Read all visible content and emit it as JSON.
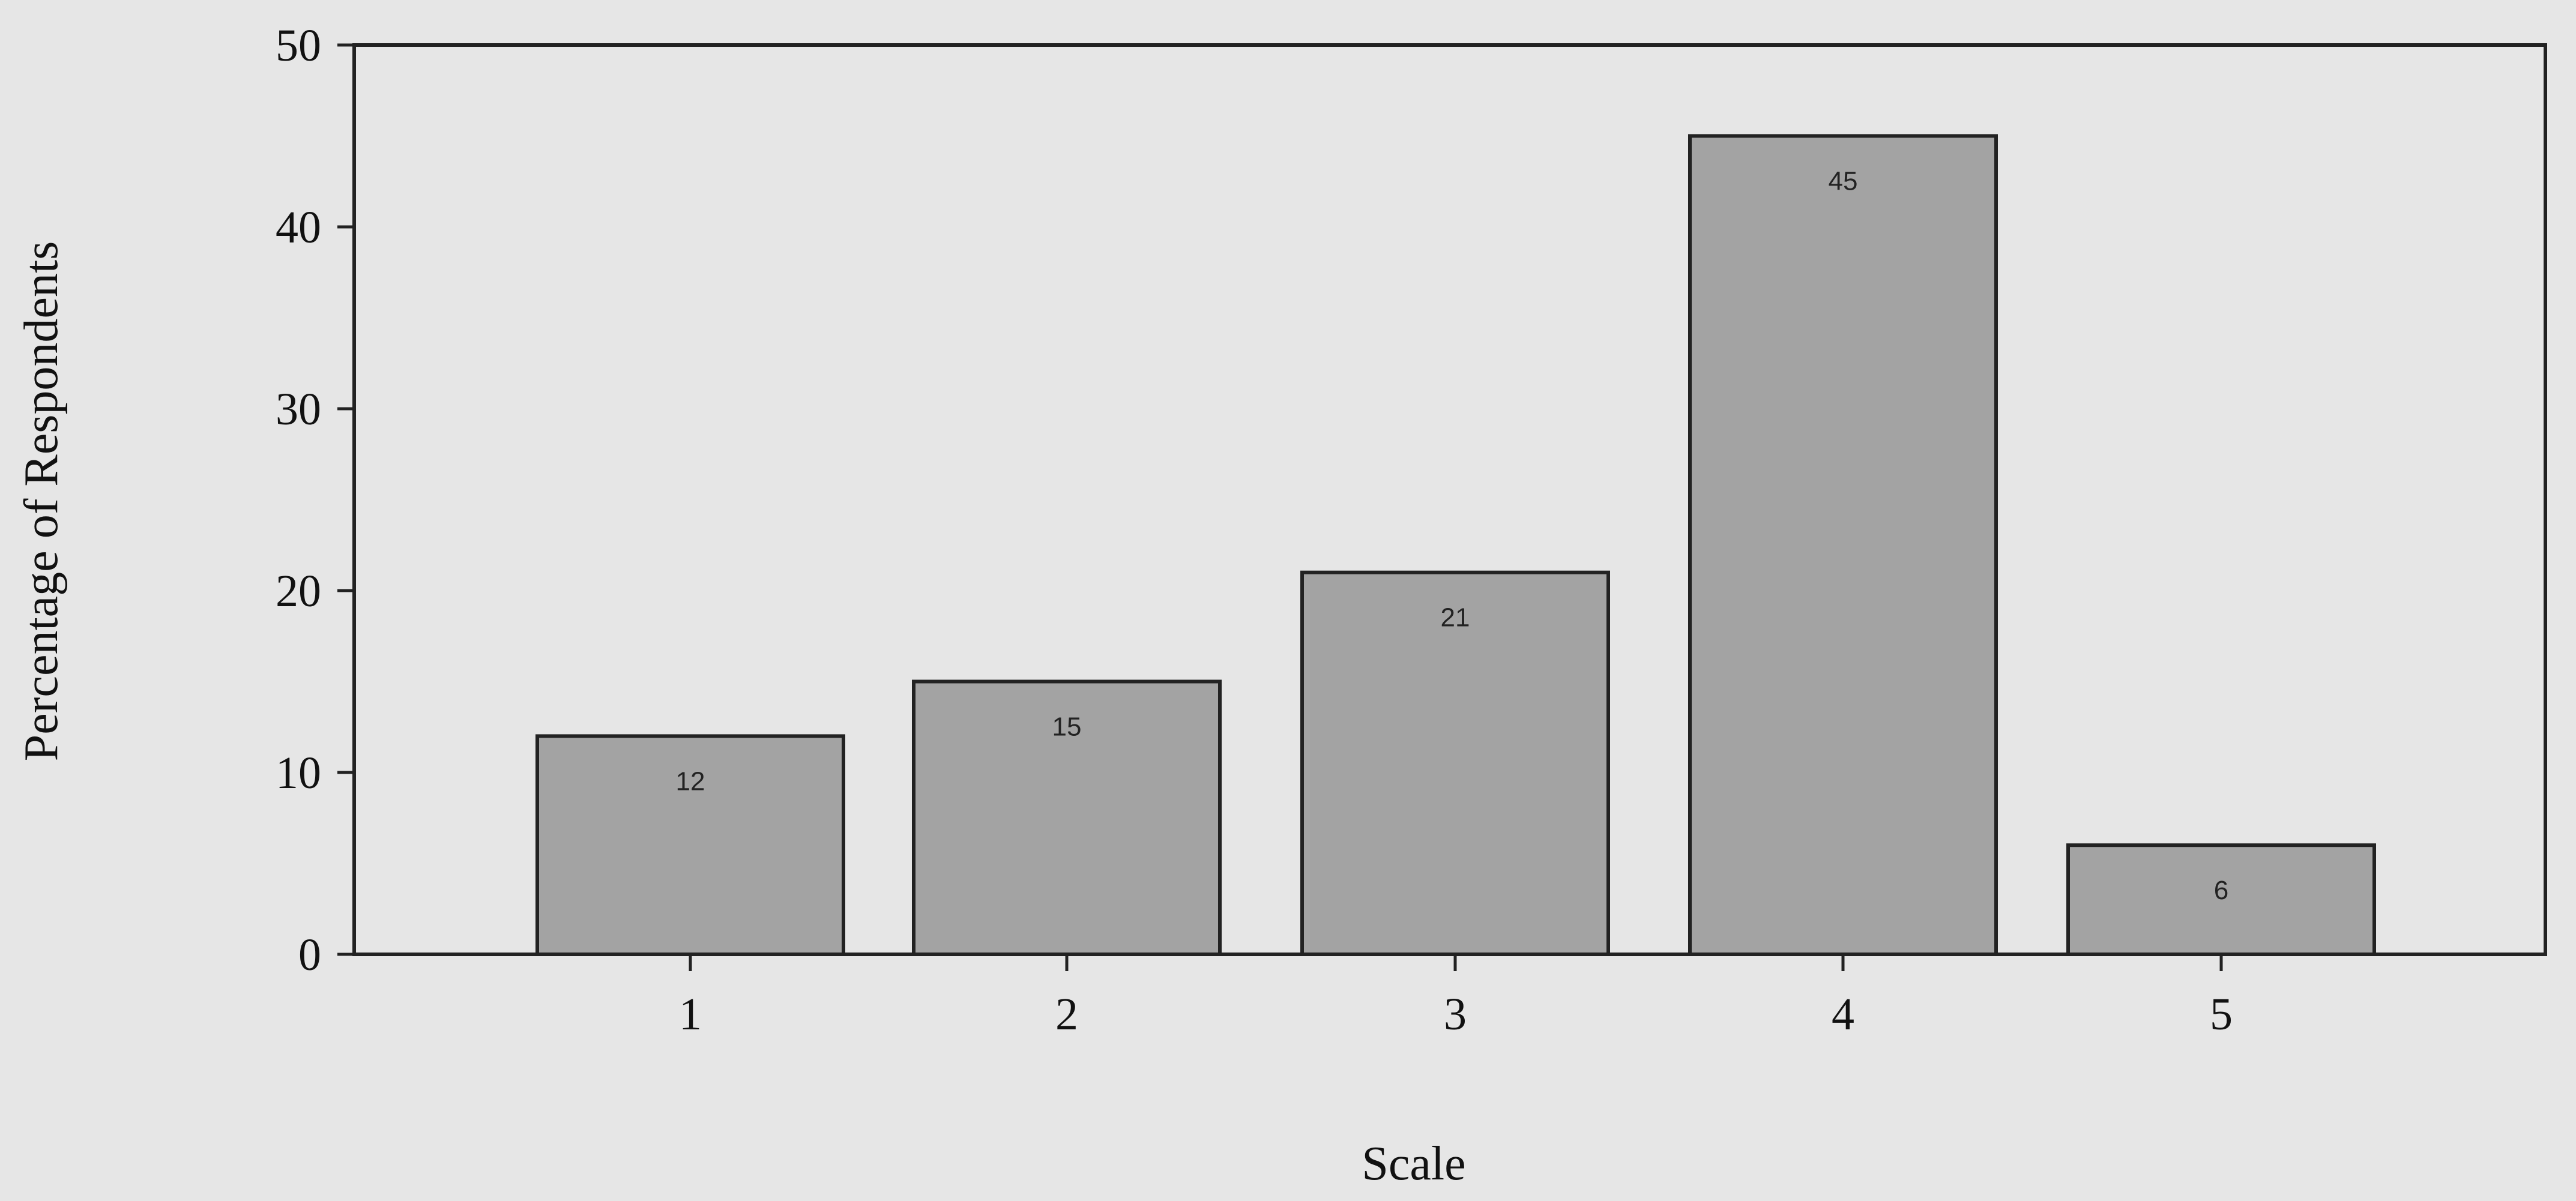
{
  "chart_data": {
    "type": "bar",
    "categories": [
      "1",
      "2",
      "3",
      "4",
      "5"
    ],
    "values": [
      12,
      15,
      21,
      45,
      6
    ],
    "data_labels": [
      "12",
      "15",
      "21",
      "45",
      "6"
    ],
    "title": "",
    "xlabel": "Scale",
    "ylabel": "Percentage of Respondents",
    "ylim": [
      0,
      50
    ],
    "yticks": [
      0,
      10,
      20,
      30,
      40,
      50
    ],
    "grid": false,
    "legend": "none",
    "colors": {
      "background": "#e6e6e6",
      "bar_fill": "#a3a3a3",
      "axis": "#222222"
    }
  }
}
